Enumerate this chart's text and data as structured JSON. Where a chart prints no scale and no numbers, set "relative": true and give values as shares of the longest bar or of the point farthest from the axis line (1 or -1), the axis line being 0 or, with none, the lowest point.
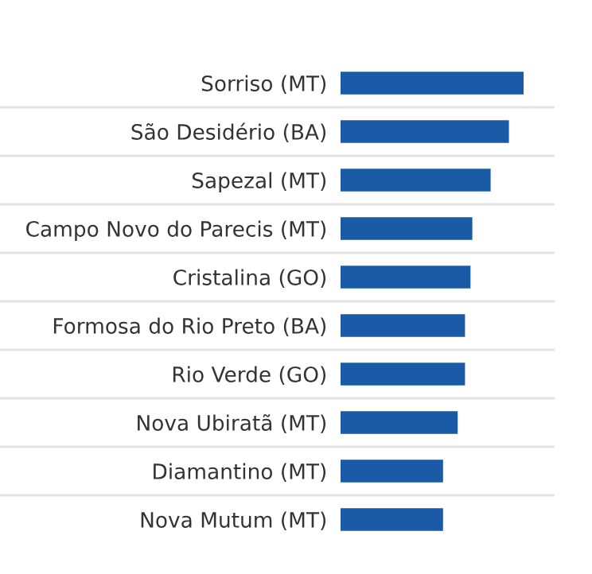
{
  "chart_data": {
    "type": "bar",
    "orientation": "horizontal",
    "relative": true,
    "grid": "y",
    "color": "#1a5aa6",
    "categories": [
      "Sorriso (MT)",
      "São Desidério (BA)",
      "Sapezal (MT)",
      "Campo Novo do Parecis (MT)",
      "Cristalina (GO)",
      "Formosa do Rio Preto (BA)",
      "Rio Verde (GO)",
      "Nova Ubiratã (MT)",
      "Diamantino (MT)",
      "Nova Mutum (MT)"
    ],
    "values": [
      1,
      0.92,
      0.82,
      0.72,
      0.71,
      0.68,
      0.68,
      0.64,
      0.56,
      0.56
    ]
  }
}
